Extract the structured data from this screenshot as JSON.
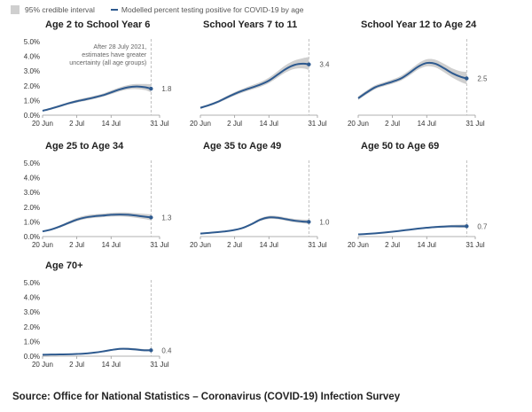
{
  "legend": {
    "band_label": "95% credible interval",
    "line_label": "Modelled percent testing positive for COVID-19 by age"
  },
  "source": "Source: Office for National Statistics – Coronavirus (COVID-19) Infection Survey",
  "colors": {
    "line": "#2e5a8f",
    "band": "#cfcfcf",
    "dash": "#b0b0b0",
    "axis": "#999999"
  },
  "chart_data": [
    {
      "type": "line",
      "title": "Age 2 to School Year 6",
      "x_tick_labels": [
        "20 Jun",
        "2 Jul",
        "14 Jul",
        "31 Jul"
      ],
      "y_tick_labels": [
        "0.0%",
        "1.0%",
        "2.0%",
        "3.0%",
        "4.0%",
        "5.0%"
      ],
      "xlim": [
        0,
        41
      ],
      "ylim": [
        0,
        5
      ],
      "reference_line_x": 38,
      "annotation": [
        "After 28 July 2021,",
        "estimates have greater",
        "uncertainty (all age groups)"
      ],
      "end_label": "1.8",
      "series": [
        {
          "x": [
            0,
            3,
            6,
            9,
            12,
            15,
            18,
            21,
            24,
            27,
            30,
            33,
            36,
            38
          ],
          "y": [
            0.3,
            0.45,
            0.62,
            0.8,
            0.95,
            1.07,
            1.2,
            1.35,
            1.55,
            1.75,
            1.9,
            1.95,
            1.9,
            1.8
          ],
          "lower": [
            0.25,
            0.38,
            0.54,
            0.72,
            0.86,
            0.97,
            1.1,
            1.25,
            1.43,
            1.62,
            1.75,
            1.77,
            1.7,
            1.55
          ],
          "upper": [
            0.36,
            0.52,
            0.7,
            0.88,
            1.05,
            1.18,
            1.31,
            1.46,
            1.68,
            1.89,
            2.05,
            2.12,
            2.12,
            2.1
          ]
        }
      ]
    },
    {
      "type": "line",
      "title": "School Years 7 to 11",
      "x_tick_labels": [
        "20 Jun",
        "2 Jul",
        "14 Jul",
        "31 Jul"
      ],
      "y_tick_labels": [],
      "xlim": [
        0,
        41
      ],
      "ylim": [
        0,
        5
      ],
      "reference_line_x": 38,
      "end_label": "3.4",
      "series": [
        {
          "x": [
            0,
            3,
            6,
            9,
            12,
            15,
            18,
            21,
            24,
            27,
            30,
            33,
            36,
            38
          ],
          "y": [
            0.5,
            0.68,
            0.9,
            1.18,
            1.45,
            1.68,
            1.88,
            2.08,
            2.35,
            2.75,
            3.15,
            3.42,
            3.5,
            3.45
          ],
          "lower": [
            0.44,
            0.61,
            0.82,
            1.08,
            1.33,
            1.55,
            1.74,
            1.93,
            2.18,
            2.55,
            2.92,
            3.15,
            3.18,
            3.08
          ],
          "upper": [
            0.57,
            0.76,
            0.99,
            1.28,
            1.57,
            1.81,
            2.03,
            2.25,
            2.55,
            2.98,
            3.42,
            3.72,
            3.88,
            3.95
          ]
        }
      ]
    },
    {
      "type": "line",
      "title": "School Year 12 to Age 24",
      "x_tick_labels": [
        "20 Jun",
        "2 Jul",
        "14 Jul",
        "31 Jul"
      ],
      "y_tick_labels": [],
      "xlim": [
        0,
        41
      ],
      "ylim": [
        0,
        5
      ],
      "reference_line_x": 38,
      "end_label": "2.5",
      "series": [
        {
          "x": [
            0,
            3,
            6,
            9,
            12,
            15,
            18,
            21,
            24,
            27,
            30,
            33,
            36,
            38
          ],
          "y": [
            1.15,
            1.55,
            1.9,
            2.1,
            2.28,
            2.5,
            2.88,
            3.3,
            3.55,
            3.5,
            3.2,
            2.85,
            2.6,
            2.5
          ],
          "lower": [
            1.03,
            1.42,
            1.77,
            1.97,
            2.14,
            2.35,
            2.7,
            3.1,
            3.32,
            3.25,
            2.93,
            2.55,
            2.25,
            2.1
          ],
          "upper": [
            1.28,
            1.69,
            2.04,
            2.24,
            2.43,
            2.67,
            3.07,
            3.52,
            3.8,
            3.77,
            3.5,
            3.18,
            2.98,
            2.95
          ]
        }
      ]
    },
    {
      "type": "line",
      "title": "Age 25 to Age 34",
      "x_tick_labels": [
        "20 Jun",
        "2 Jul",
        "14 Jul",
        "31 Jul"
      ],
      "y_tick_labels": [
        "0.0%",
        "1.0%",
        "2.0%",
        "3.0%",
        "4.0%",
        "5.0%"
      ],
      "xlim": [
        0,
        41
      ],
      "ylim": [
        0,
        5
      ],
      "reference_line_x": 38,
      "end_label": "1.3",
      "series": [
        {
          "x": [
            0,
            3,
            6,
            9,
            12,
            15,
            18,
            21,
            24,
            27,
            30,
            33,
            36,
            38
          ],
          "y": [
            0.35,
            0.48,
            0.68,
            0.92,
            1.15,
            1.3,
            1.38,
            1.43,
            1.48,
            1.5,
            1.48,
            1.42,
            1.35,
            1.3
          ],
          "lower": [
            0.3,
            0.42,
            0.61,
            0.83,
            1.05,
            1.19,
            1.27,
            1.32,
            1.36,
            1.37,
            1.34,
            1.27,
            1.18,
            1.1
          ],
          "upper": [
            0.41,
            0.55,
            0.76,
            1.02,
            1.27,
            1.43,
            1.51,
            1.56,
            1.61,
            1.64,
            1.63,
            1.58,
            1.54,
            1.52
          ]
        }
      ]
    },
    {
      "type": "line",
      "title": "Age 35 to Age 49",
      "x_tick_labels": [
        "20 Jun",
        "2 Jul",
        "14 Jul",
        "31 Jul"
      ],
      "y_tick_labels": [],
      "xlim": [
        0,
        41
      ],
      "ylim": [
        0,
        5
      ],
      "reference_line_x": 38,
      "end_label": "1.0",
      "series": [
        {
          "x": [
            0,
            3,
            6,
            9,
            12,
            15,
            18,
            21,
            24,
            27,
            30,
            33,
            36,
            38
          ],
          "y": [
            0.2,
            0.25,
            0.3,
            0.36,
            0.45,
            0.6,
            0.85,
            1.15,
            1.3,
            1.28,
            1.18,
            1.08,
            1.02,
            1.0
          ],
          "lower": [
            0.17,
            0.22,
            0.27,
            0.32,
            0.41,
            0.55,
            0.78,
            1.06,
            1.2,
            1.18,
            1.08,
            0.97,
            0.9,
            0.86
          ],
          "upper": [
            0.24,
            0.29,
            0.34,
            0.4,
            0.5,
            0.66,
            0.93,
            1.25,
            1.41,
            1.39,
            1.29,
            1.2,
            1.16,
            1.15
          ]
        }
      ]
    },
    {
      "type": "line",
      "title": "Age 50 to Age 69",
      "x_tick_labels": [
        "20 Jun",
        "2 Jul",
        "14 Jul",
        "31 Jul"
      ],
      "y_tick_labels": [],
      "xlim": [
        0,
        41
      ],
      "ylim": [
        0,
        5
      ],
      "reference_line_x": 38,
      "end_label": "0.7",
      "series": [
        {
          "x": [
            0,
            3,
            6,
            9,
            12,
            15,
            18,
            21,
            24,
            27,
            30,
            33,
            36,
            38
          ],
          "y": [
            0.15,
            0.18,
            0.22,
            0.27,
            0.33,
            0.4,
            0.47,
            0.54,
            0.6,
            0.65,
            0.68,
            0.7,
            0.7,
            0.7
          ],
          "lower": [
            0.13,
            0.16,
            0.2,
            0.24,
            0.3,
            0.36,
            0.43,
            0.49,
            0.55,
            0.59,
            0.61,
            0.62,
            0.6,
            0.58
          ],
          "upper": [
            0.17,
            0.2,
            0.24,
            0.3,
            0.36,
            0.44,
            0.51,
            0.59,
            0.65,
            0.71,
            0.75,
            0.79,
            0.81,
            0.83
          ]
        }
      ]
    },
    {
      "type": "line",
      "title": "Age 70+",
      "x_tick_labels": [
        "20 Jun",
        "2 Jul",
        "14 Jul",
        "31 Jul"
      ],
      "y_tick_labels": [
        "0.0%",
        "1.0%",
        "2.0%",
        "3.0%",
        "4.0%",
        "5.0%"
      ],
      "xlim": [
        0,
        41
      ],
      "ylim": [
        0,
        5
      ],
      "reference_line_x": 38,
      "end_label": "0.4",
      "series": [
        {
          "x": [
            0,
            3,
            6,
            9,
            12,
            15,
            18,
            21,
            24,
            27,
            30,
            33,
            36,
            38
          ],
          "y": [
            0.1,
            0.11,
            0.12,
            0.13,
            0.15,
            0.18,
            0.24,
            0.32,
            0.42,
            0.5,
            0.5,
            0.45,
            0.4,
            0.4
          ],
          "lower": [
            0.08,
            0.09,
            0.1,
            0.11,
            0.13,
            0.16,
            0.21,
            0.28,
            0.37,
            0.44,
            0.43,
            0.38,
            0.33,
            0.32
          ],
          "upper": [
            0.12,
            0.13,
            0.14,
            0.15,
            0.17,
            0.21,
            0.27,
            0.36,
            0.47,
            0.56,
            0.57,
            0.53,
            0.48,
            0.49
          ]
        }
      ]
    }
  ]
}
